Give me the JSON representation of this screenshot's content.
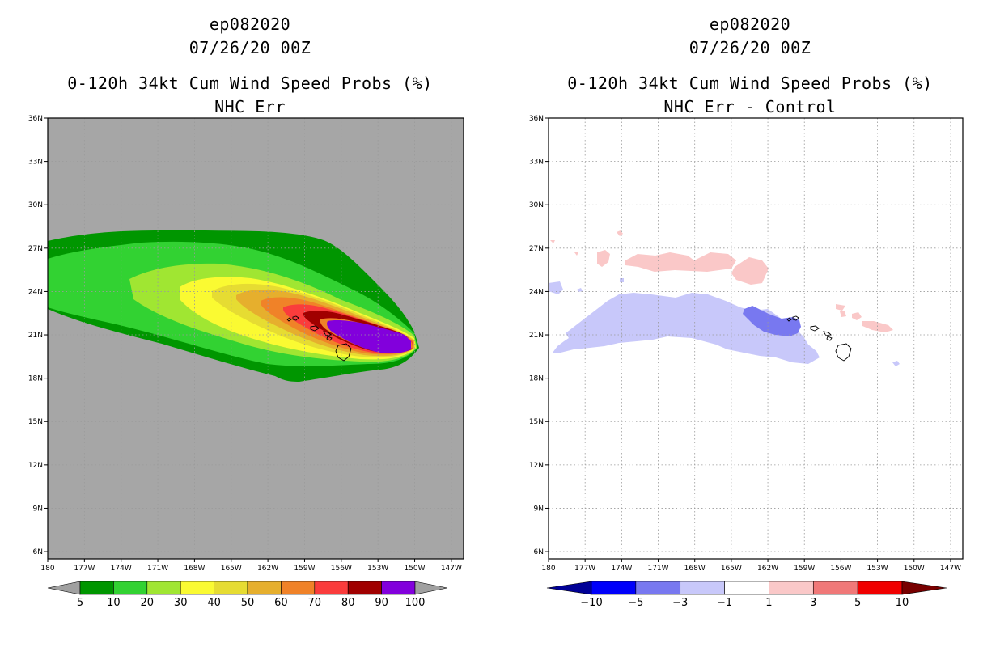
{
  "chart_data": [
    {
      "type": "heatmap",
      "storm": "ep082020",
      "datetime": "07/26/20 00Z",
      "title": "0-120h 34kt Cum Wind Speed Probs (%)",
      "subtitle": "NHC Err",
      "xlabel": "",
      "ylabel": "",
      "xlim": [
        180,
        146
      ],
      "ylim": [
        5.5,
        36
      ],
      "x_tick_labels": [
        "180",
        "177W",
        "174W",
        "171W",
        "168W",
        "165W",
        "162W",
        "159W",
        "156W",
        "153W",
        "150W",
        "147W"
      ],
      "y_tick_labels": [
        "36N",
        "33N",
        "30N",
        "27N",
        "24N",
        "21N",
        "18N",
        "15N",
        "12N",
        "9N",
        "6N"
      ],
      "grid": true,
      "colorbar": {
        "labels": [
          "5",
          "10",
          "20",
          "30",
          "40",
          "50",
          "60",
          "70",
          "80",
          "90",
          "100"
        ],
        "colors": [
          "#009600",
          "#32d232",
          "#a0e632",
          "#fafa32",
          "#e6dc32",
          "#e6af2d",
          "#f08228",
          "#fa3c3c",
          "#a00000",
          "#8200dc"
        ],
        "under_color": "#a0a0a0",
        "over_color": "#a0a0a0"
      },
      "background_color": "#a6a6a6"
    },
    {
      "type": "heatmap",
      "storm": "ep082020",
      "datetime": "07/26/20 00Z",
      "title": "0-120h 34kt Cum Wind Speed Probs (%)",
      "subtitle": "NHC Err - Control",
      "xlabel": "",
      "ylabel": "",
      "xlim": [
        180,
        146
      ],
      "ylim": [
        5.5,
        36
      ],
      "x_tick_labels": [
        "180",
        "177W",
        "174W",
        "171W",
        "168W",
        "165W",
        "162W",
        "159W",
        "156W",
        "153W",
        "150W",
        "147W"
      ],
      "y_tick_labels": [
        "36N",
        "33N",
        "30N",
        "27N",
        "24N",
        "21N",
        "18N",
        "15N",
        "12N",
        "9N",
        "6N"
      ],
      "grid": true,
      "colorbar": {
        "labels": [
          "-10",
          "-5",
          "-3",
          "-1",
          "1",
          "3",
          "5",
          "10"
        ],
        "colors": [
          "#0000fa",
          "#7878f0",
          "#c8c8fa",
          "#ffffff",
          "#fac8c8",
          "#f07878",
          "#f00000"
        ],
        "under_color": "#000096",
        "over_color": "#780000"
      },
      "background_color": "#ffffff"
    }
  ]
}
